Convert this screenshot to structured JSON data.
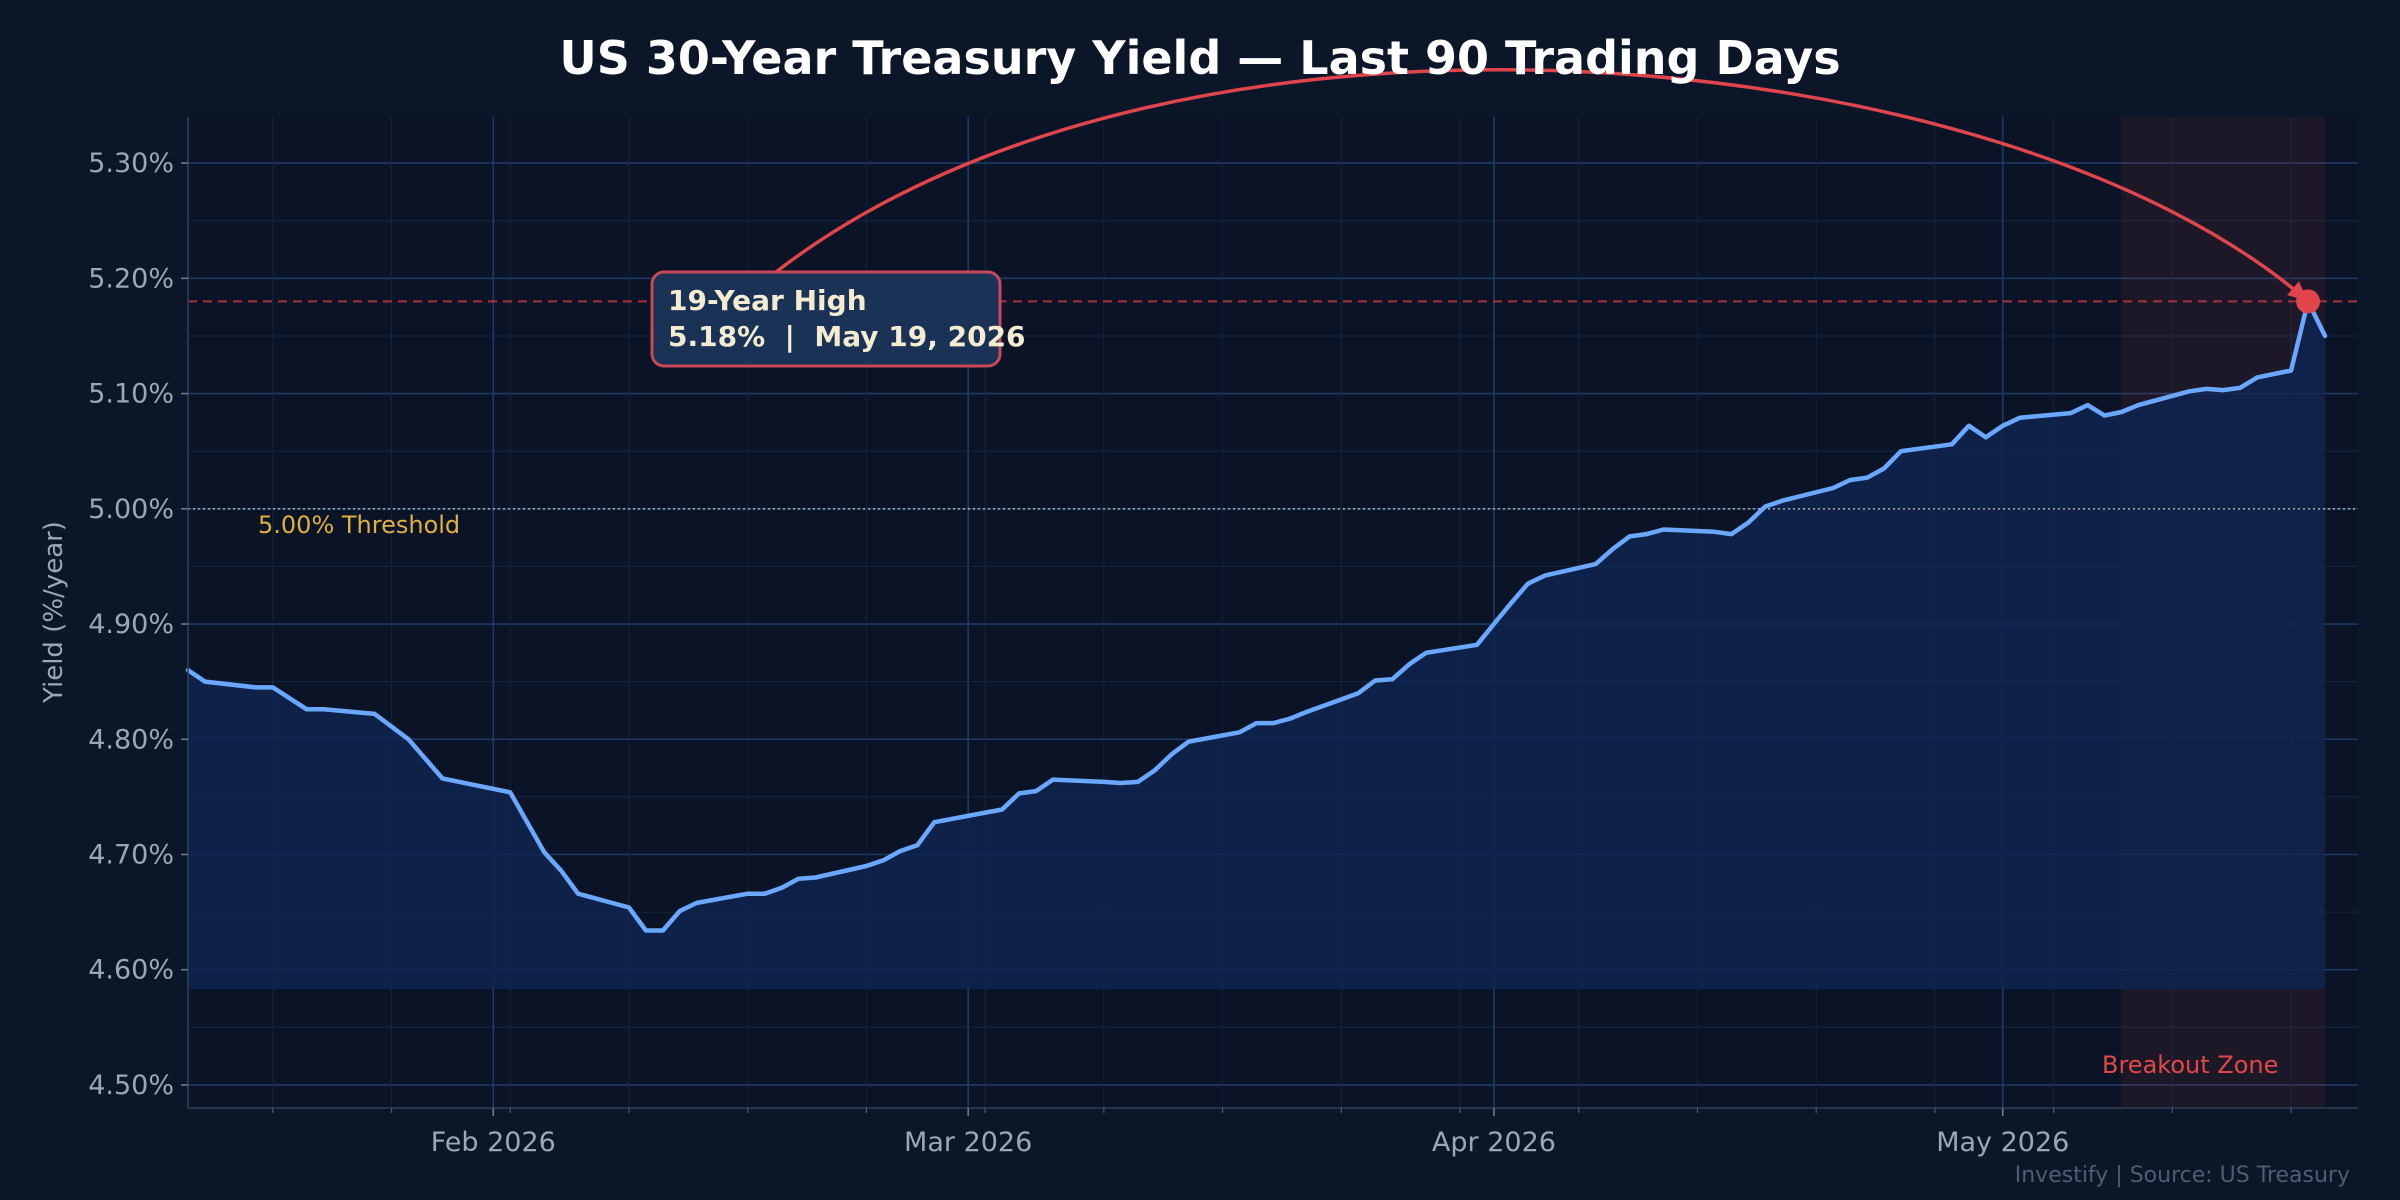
{
  "chart_data": {
    "type": "line",
    "title": "US 30-Year Treasury Yield — Last 90 Trading Days",
    "ylabel": "Yield (%/year)",
    "xlabel": "",
    "ylim": [
      4.48,
      5.34
    ],
    "y_ticks": [
      4.5,
      4.6,
      4.7,
      4.8,
      4.9,
      5.0,
      5.1,
      5.2,
      5.3
    ],
    "y_tick_labels": [
      "4.50%",
      "4.60%",
      "4.70%",
      "4.80%",
      "4.90%",
      "5.00%",
      "5.10%",
      "5.20%",
      "5.30%"
    ],
    "xlim": [
      "2026-01-14",
      "2026-05-20"
    ],
    "x_ticks": [
      "2026-02-01",
      "2026-03-01",
      "2026-04-01",
      "2026-05-01"
    ],
    "x_tick_labels": [
      "Feb 2026",
      "Mar 2026",
      "Apr 2026",
      "May 2026"
    ],
    "grid": true,
    "series": [
      {
        "color": "#6aa8ff",
        "area_fill": "#0f2550",
        "points": [
          [
            "2026-01-14",
            4.86
          ],
          [
            "2026-01-15",
            4.85
          ],
          [
            "2026-01-18",
            4.845
          ],
          [
            "2026-01-19",
            4.845
          ],
          [
            "2026-01-21",
            4.826
          ],
          [
            "2026-01-22",
            4.826
          ],
          [
            "2026-01-25",
            4.822
          ],
          [
            "2026-01-27",
            4.8
          ],
          [
            "2026-01-29",
            4.766
          ],
          [
            "2026-02-02",
            4.754
          ],
          [
            "2026-02-04",
            4.702
          ],
          [
            "2026-02-05",
            4.686
          ],
          [
            "2026-02-06",
            4.666
          ],
          [
            "2026-02-09",
            4.654
          ],
          [
            "2026-02-10",
            4.634
          ],
          [
            "2026-02-11",
            4.634
          ],
          [
            "2026-02-12",
            4.651
          ],
          [
            "2026-02-13",
            4.658
          ],
          [
            "2026-02-16",
            4.666
          ],
          [
            "2026-02-17",
            4.666
          ],
          [
            "2026-02-18",
            4.671
          ],
          [
            "2026-02-19",
            4.679
          ],
          [
            "2026-02-20",
            4.68
          ],
          [
            "2026-02-23",
            4.69
          ],
          [
            "2026-02-24",
            4.695
          ],
          [
            "2026-02-25",
            4.703
          ],
          [
            "2026-02-26",
            4.708
          ],
          [
            "2026-02-27",
            4.728
          ],
          [
            "2026-03-03",
            4.739
          ],
          [
            "2026-03-04",
            4.753
          ],
          [
            "2026-03-05",
            4.755
          ],
          [
            "2026-03-06",
            4.765
          ],
          [
            "2026-03-09",
            4.763
          ],
          [
            "2026-03-10",
            4.762
          ],
          [
            "2026-03-11",
            4.763
          ],
          [
            "2026-03-12",
            4.773
          ],
          [
            "2026-03-13",
            4.787
          ],
          [
            "2026-03-14",
            4.798
          ],
          [
            "2026-03-17",
            4.806
          ],
          [
            "2026-03-18",
            4.814
          ],
          [
            "2026-03-19",
            4.814
          ],
          [
            "2026-03-20",
            4.818
          ],
          [
            "2026-03-21",
            4.824
          ],
          [
            "2026-03-24",
            4.84
          ],
          [
            "2026-03-25",
            4.851
          ],
          [
            "2026-03-26",
            4.852
          ],
          [
            "2026-03-27",
            4.865
          ],
          [
            "2026-03-28",
            4.875
          ],
          [
            "2026-03-31",
            4.882
          ],
          [
            "2026-04-01",
            4.9
          ],
          [
            "2026-04-02",
            4.918
          ],
          [
            "2026-04-03",
            4.935
          ],
          [
            "2026-04-04",
            4.942
          ],
          [
            "2026-04-07",
            4.952
          ],
          [
            "2026-04-08",
            4.965
          ],
          [
            "2026-04-09",
            4.976
          ],
          [
            "2026-04-10",
            4.978
          ],
          [
            "2026-04-11",
            4.982
          ],
          [
            "2026-04-14",
            4.98
          ],
          [
            "2026-04-15",
            4.978
          ],
          [
            "2026-04-16",
            4.988
          ],
          [
            "2026-04-17",
            5.002
          ],
          [
            "2026-04-18",
            5.007
          ],
          [
            "2026-04-21",
            5.018
          ],
          [
            "2026-04-22",
            5.025
          ],
          [
            "2026-04-23",
            5.027
          ],
          [
            "2026-04-24",
            5.035
          ],
          [
            "2026-04-25",
            5.05
          ],
          [
            "2026-04-28",
            5.056
          ],
          [
            "2026-04-29",
            5.072
          ],
          [
            "2026-04-30",
            5.062
          ],
          [
            "2026-05-01",
            5.072
          ],
          [
            "2026-05-02",
            5.079
          ],
          [
            "2026-05-05",
            5.083
          ],
          [
            "2026-05-06",
            5.09
          ],
          [
            "2026-05-07",
            5.081
          ],
          [
            "2026-05-08",
            5.084
          ],
          [
            "2026-05-09",
            5.09
          ],
          [
            "2026-05-12",
            5.102
          ],
          [
            "2026-05-13",
            5.104
          ],
          [
            "2026-05-14",
            5.103
          ],
          [
            "2026-05-15",
            5.105
          ],
          [
            "2026-05-16",
            5.114
          ],
          [
            "2026-05-18",
            5.12
          ],
          [
            "2026-05-19",
            5.18
          ],
          [
            "2026-05-20",
            5.15
          ]
        ]
      }
    ],
    "reference_lines": [
      {
        "y": 5.18,
        "style": "dashed",
        "color": "#c0383c"
      },
      {
        "y": 5.0,
        "style": "dotted",
        "color": "#c9c2a8",
        "label": "5.00% Threshold",
        "label_color": "#e0b040"
      }
    ],
    "shaded_region": {
      "x_start": "2026-05-08",
      "x_end": "2026-05-20",
      "label": "Breakout Zone",
      "color": "#e04848"
    },
    "annotation": {
      "line1": "19-Year High",
      "line2": "5.18%  |  May 19, 2026",
      "point": [
        "2026-05-19",
        5.18
      ],
      "arrow_color": "#e0454c",
      "marker_color": "#e0454c"
    },
    "footer": "Investify  |  Source: US Treasury"
  }
}
